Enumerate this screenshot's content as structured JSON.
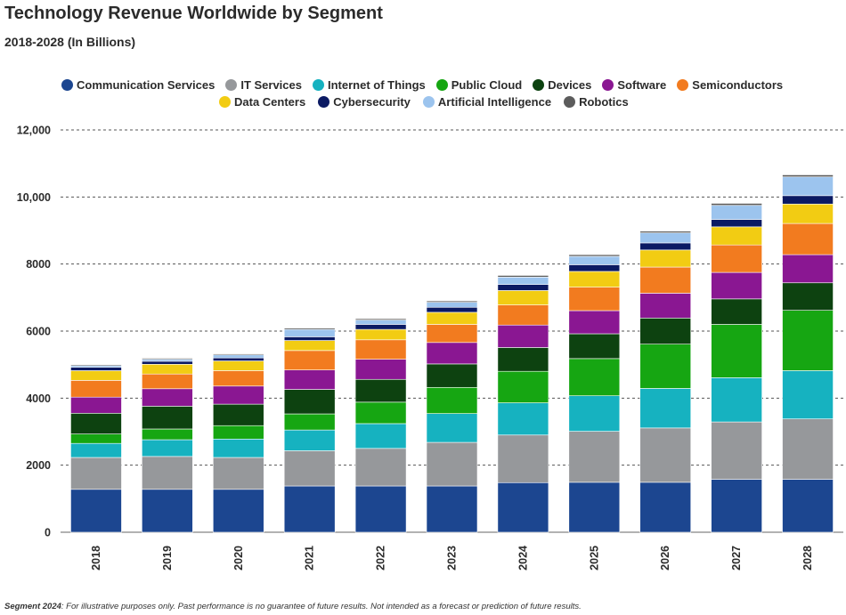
{
  "title": "Technology Revenue Worldwide by Segment",
  "subtitle": "2018-2028 (In Billions)",
  "footnote": {
    "label": "Segment 2024",
    "text": ": For illustrative purposes only. Past performance is no guarantee of future results. Not intended as a forecast or prediction of future results."
  },
  "chart_data": {
    "type": "bar",
    "stacked": true,
    "categories": [
      "2018",
      "2019",
      "2020",
      "2021",
      "2022",
      "2023",
      "2024",
      "2025",
      "2026",
      "2027",
      "2028"
    ],
    "ylim": [
      0,
      12000
    ],
    "yticks": [
      0,
      2000,
      4000,
      6000,
      8000,
      10000,
      12000
    ],
    "ytick_labels": [
      "0",
      "2000",
      "4000",
      "6000",
      "8000",
      "10,000",
      "12,000"
    ],
    "grid": true,
    "legend_position": "top",
    "series": [
      {
        "name": "Communication Services",
        "color": "#1c4690",
        "values": [
          1280,
          1280,
          1280,
          1380,
          1380,
          1380,
          1480,
          1490,
          1490,
          1580,
          1580
        ]
      },
      {
        "name": "IT Services",
        "color": "#96989b",
        "values": [
          950,
          980,
          950,
          1050,
          1120,
          1300,
          1420,
          1520,
          1620,
          1710,
          1800
        ]
      },
      {
        "name": "Internet of Things",
        "color": "#16b2c0",
        "values": [
          420,
          500,
          550,
          620,
          740,
          860,
          960,
          1060,
          1180,
          1320,
          1440
        ]
      },
      {
        "name": "Public Cloud",
        "color": "#16a612",
        "values": [
          280,
          320,
          400,
          480,
          640,
          780,
          940,
          1110,
          1320,
          1590,
          1800
        ]
      },
      {
        "name": "Devices",
        "color": "#0d4210",
        "values": [
          620,
          680,
          640,
          730,
          680,
          700,
          710,
          740,
          780,
          760,
          820
        ]
      },
      {
        "name": "Software",
        "color": "#8a1792",
        "values": [
          480,
          520,
          540,
          580,
          600,
          640,
          670,
          690,
          740,
          790,
          840
        ]
      },
      {
        "name": "Semiconductors",
        "color": "#f27b1f",
        "values": [
          500,
          440,
          460,
          580,
          580,
          540,
          600,
          700,
          780,
          820,
          930
        ]
      },
      {
        "name": "Data Centers",
        "color": "#f2cc13",
        "values": [
          290,
          290,
          290,
          300,
          310,
          360,
          430,
          470,
          510,
          540,
          580
        ]
      },
      {
        "name": "Cybersecurity",
        "color": "#0b1a63",
        "values": [
          100,
          90,
          90,
          110,
          150,
          150,
          180,
          200,
          210,
          220,
          250
        ]
      },
      {
        "name": "Artificial Intelligence",
        "color": "#9cc4ee",
        "values": [
          50,
          60,
          90,
          220,
          130,
          150,
          220,
          250,
          300,
          420,
          560
        ]
      },
      {
        "name": "Robotics",
        "color": "#5c5c5c",
        "values": [
          30,
          30,
          30,
          40,
          40,
          40,
          50,
          50,
          50,
          60,
          60
        ]
      }
    ]
  }
}
